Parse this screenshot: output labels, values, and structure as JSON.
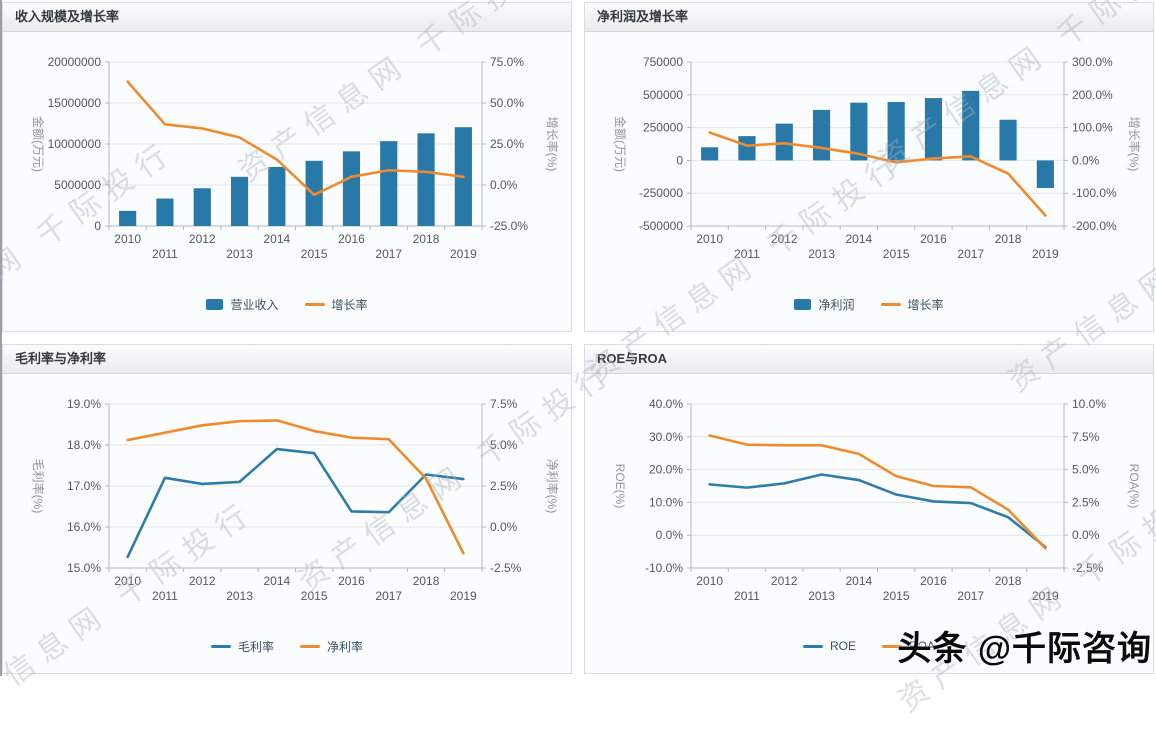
{
  "watermark": {
    "diagonal_text": "资产信息网 千际投行",
    "badge_text": "头条 @千际咨询"
  },
  "palette": {
    "bar_blue": "#2878a8",
    "line_orange": "#ef8b2f",
    "line_blue": "#2f7ca8"
  },
  "chart_data": [
    {
      "type": "bar",
      "title": "收入规模及增长率",
      "categories": [
        "2010",
        "2011",
        "2012",
        "2013",
        "2014",
        "2015",
        "2016",
        "2017",
        "2018",
        "2019"
      ],
      "left_axis": {
        "name": "金额(万元)",
        "min": 0,
        "max": 20000000,
        "tick_values": [
          0,
          5000000,
          10000000,
          15000000,
          20000000
        ],
        "tick_labels": [
          "0",
          "5000000",
          "10000000",
          "15000000",
          "20000000"
        ]
      },
      "right_axis": {
        "name": "增长率(%)",
        "min": -25,
        "max": 75,
        "tick_values": [
          -25,
          0,
          25,
          50,
          75
        ],
        "tick_labels": [
          "-25.0%",
          "0.0%",
          "25.0%",
          "50.0%",
          "75.0%"
        ]
      },
      "series": [
        {
          "name": "营业收入",
          "type": "bar",
          "axis": "left",
          "color": "#2878a8",
          "values": [
            1850000,
            3350000,
            4600000,
            6000000,
            7200000,
            7950000,
            9100000,
            10350000,
            11300000,
            12050000
          ]
        },
        {
          "name": "增长率",
          "type": "line",
          "axis": "right",
          "color": "#ef8b2f",
          "values": [
            63,
            37,
            34.5,
            29,
            15.5,
            -6,
            5,
            9,
            8,
            5
          ]
        }
      ],
      "grid": true,
      "legend_position": "bottom"
    },
    {
      "type": "bar",
      "title": "净利润及增长率",
      "categories": [
        "2010",
        "2011",
        "2012",
        "2013",
        "2014",
        "2015",
        "2016",
        "2017",
        "2018",
        "2019"
      ],
      "left_axis": {
        "name": "金额(万元)",
        "min": -500000,
        "max": 750000,
        "tick_values": [
          -500000,
          -250000,
          0,
          250000,
          500000,
          750000
        ],
        "tick_labels": [
          "-500000",
          "-250000",
          "0",
          "250000",
          "500000",
          "750000"
        ]
      },
      "right_axis": {
        "name": "增长率(%)",
        "min": -200,
        "max": 300,
        "tick_values": [
          -200,
          -100,
          0,
          100,
          200,
          300
        ],
        "tick_labels": [
          "-200.0%",
          "-100.0%",
          "0.0%",
          "100.0%",
          "200.0%",
          "300.0%"
        ]
      },
      "series": [
        {
          "name": "净利润",
          "type": "bar",
          "axis": "left",
          "color": "#2878a8",
          "values": [
            100000,
            185000,
            280000,
            385000,
            440000,
            445000,
            475000,
            530000,
            310000,
            -210000
          ]
        },
        {
          "name": "增长率",
          "type": "line",
          "axis": "right",
          "color": "#ef8b2f",
          "values": [
            85,
            45,
            52,
            38,
            20,
            -6,
            6,
            12,
            -40,
            -168
          ]
        }
      ],
      "grid": true,
      "legend_position": "bottom"
    },
    {
      "type": "line",
      "title": "毛利率与净利率",
      "categories": [
        "2010",
        "2011",
        "2012",
        "2013",
        "2014",
        "2015",
        "2016",
        "2017",
        "2018",
        "2019"
      ],
      "left_axis": {
        "name": "毛利率(%)",
        "min": 15,
        "max": 19,
        "tick_values": [
          15,
          16,
          17,
          18,
          19
        ],
        "tick_labels": [
          "15.0%",
          "16.0%",
          "17.0%",
          "18.0%",
          "19.0%"
        ]
      },
      "right_axis": {
        "name": "净利率(%)",
        "min": -2.5,
        "max": 7.5,
        "tick_values": [
          -2.5,
          0,
          2.5,
          5,
          7.5
        ],
        "tick_labels": [
          "-2.5%",
          "0.0%",
          "2.5%",
          "5.0%",
          "7.5%"
        ]
      },
      "series": [
        {
          "name": "毛利率",
          "type": "line",
          "axis": "left",
          "color": "#2f7ca8",
          "values": [
            15.27,
            17.2,
            17.05,
            17.1,
            17.9,
            17.8,
            16.38,
            16.36,
            17.28,
            17.17
          ]
        },
        {
          "name": "净利率",
          "type": "line",
          "axis": "right",
          "color": "#ef8b2f",
          "values": [
            5.3,
            5.75,
            6.2,
            6.45,
            6.5,
            5.85,
            5.45,
            5.35,
            2.95,
            -1.6
          ]
        }
      ],
      "grid": true,
      "legend_position": "bottom"
    },
    {
      "type": "line",
      "title": "ROE与ROA",
      "categories": [
        "2010",
        "2011",
        "2012",
        "2013",
        "2014",
        "2015",
        "2016",
        "2017",
        "2018",
        "2019"
      ],
      "left_axis": {
        "name": "ROE(%)",
        "min": -10,
        "max": 40,
        "tick_values": [
          -10,
          0,
          10,
          20,
          30,
          40
        ],
        "tick_labels": [
          "-10.0%",
          "0.0%",
          "10.0%",
          "20.0%",
          "30.0%",
          "40.0%"
        ]
      },
      "right_axis": {
        "name": "ROA(%)",
        "min": -2.5,
        "max": 10,
        "tick_values": [
          -2.5,
          0,
          2.5,
          5,
          7.5,
          10
        ],
        "tick_labels": [
          "-2.5%",
          "0.0%",
          "2.5%",
          "5.0%",
          "7.5%",
          "10.0%"
        ]
      },
      "series": [
        {
          "name": "ROE",
          "type": "line",
          "axis": "left",
          "color": "#2f7ca8",
          "values": [
            15.5,
            14.5,
            15.8,
            18.5,
            16.8,
            12.4,
            10.3,
            9.8,
            5.5,
            -3.6
          ]
        },
        {
          "name": "ROA",
          "type": "line",
          "axis": "right",
          "color": "#ef8b2f",
          "values": [
            7.6,
            6.9,
            6.85,
            6.85,
            6.2,
            4.5,
            3.75,
            3.65,
            1.95,
            -1.0
          ]
        }
      ],
      "grid": true,
      "legend_position": "bottom"
    }
  ]
}
